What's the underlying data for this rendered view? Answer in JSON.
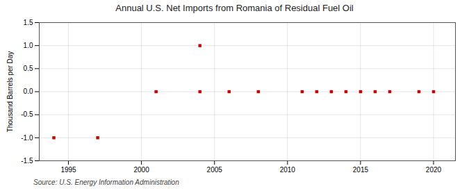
{
  "chart_data": {
    "type": "scatter",
    "title": "Annual U.S. Net Imports from Romania of Residual Fuel Oil",
    "ylabel": "Thousand Barrels per Day",
    "source": "Source: U.S. Energy Information Administration",
    "x": [
      1994,
      1997,
      2001,
      2004,
      2004,
      2006,
      2008,
      2011,
      2012,
      2013,
      2014,
      2015,
      2016,
      2017,
      2019,
      2020
    ],
    "values": [
      -1.0,
      -1.0,
      0.0,
      0.0,
      1.0,
      0.0,
      0.0,
      0.0,
      0.0,
      0.0,
      0.0,
      0.0,
      0.0,
      0.0,
      0.0,
      0.0
    ],
    "color": "#cc0000",
    "marker": "square",
    "xlim": [
      1993.0,
      2021.5
    ],
    "xticks": [
      1995,
      2000,
      2005,
      2010,
      2015,
      2020
    ],
    "ylim": [
      -1.5,
      1.5
    ],
    "yticks": [
      -1.5,
      {
        "value": -1.0,
        "label": "-1.0"
      },
      -0.5,
      {
        "value": 0.0,
        "label": "0.0"
      },
      0.5,
      {
        "value": 1.0,
        "label": "1.0"
      },
      1.5
    ],
    "grid": true
  }
}
